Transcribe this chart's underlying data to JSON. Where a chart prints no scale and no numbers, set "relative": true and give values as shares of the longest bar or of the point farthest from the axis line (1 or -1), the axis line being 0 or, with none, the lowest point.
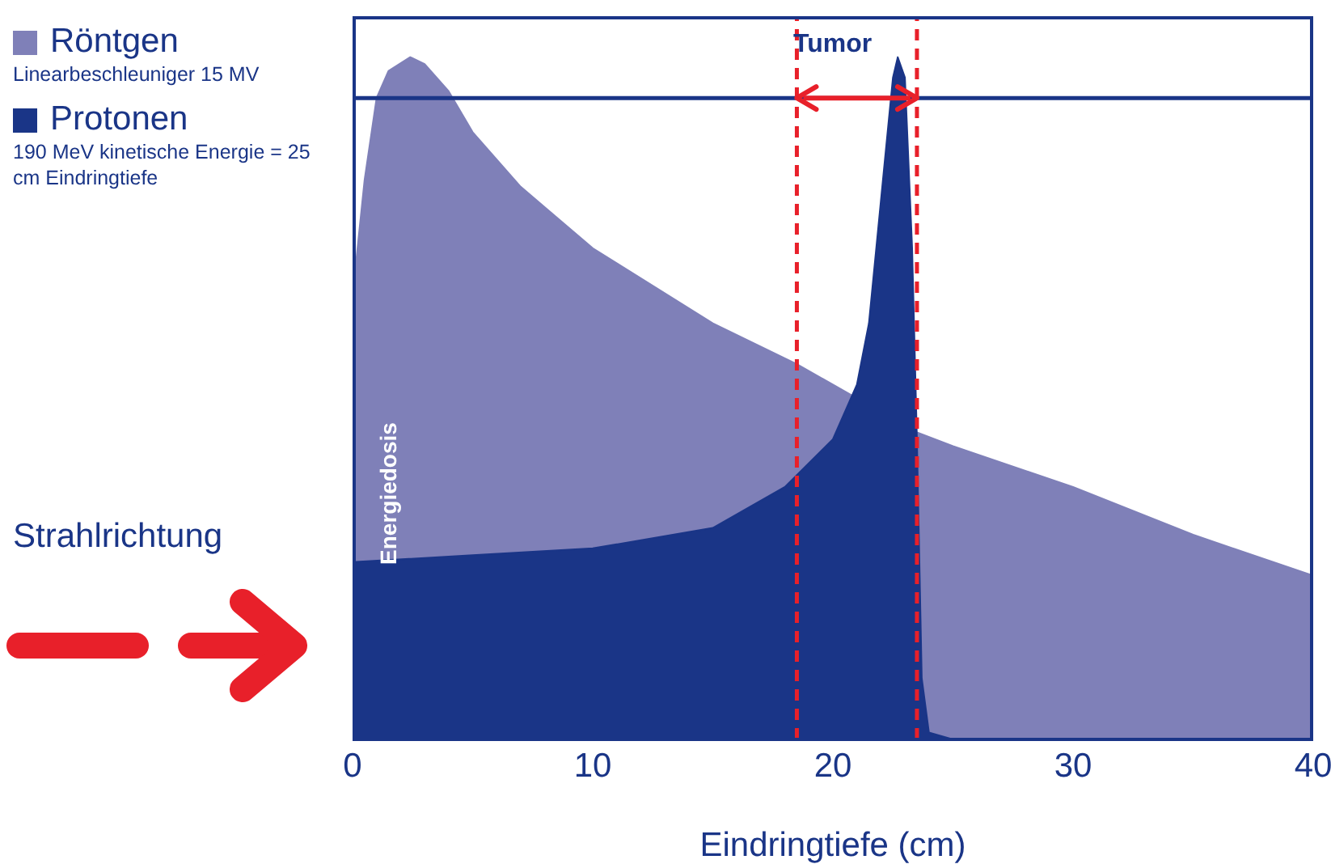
{
  "chart_data": {
    "type": "area",
    "relative": true,
    "xlabel": "Eindringtiefe (cm)",
    "ylabel": "Energiedosis",
    "xlim": [
      0,
      40
    ],
    "xticks": [
      0,
      10,
      20,
      30,
      40
    ],
    "legend": "left",
    "series": [
      {
        "name": "Röntgen",
        "color": "#7f80b8",
        "x": [
          0,
          0.5,
          1,
          1.5,
          2.4,
          3,
          4,
          5,
          7,
          10,
          15,
          18.5,
          20,
          23.5,
          25,
          30,
          35,
          40
        ],
        "values": [
          0.65,
          0.82,
          0.94,
          0.98,
          1.0,
          0.99,
          0.95,
          0.89,
          0.81,
          0.72,
          0.61,
          0.55,
          0.52,
          0.45,
          0.43,
          0.37,
          0.3,
          0.24
        ]
      },
      {
        "name": "Protonen",
        "color": "#1a3587",
        "x": [
          0,
          5,
          10,
          15,
          18,
          20,
          21,
          21.5,
          22,
          22.5,
          22.7,
          23,
          23.3,
          23.5,
          23.7,
          24,
          25
        ],
        "values": [
          0.26,
          0.27,
          0.28,
          0.31,
          0.37,
          0.44,
          0.52,
          0.61,
          0.79,
          0.97,
          1.0,
          0.97,
          0.72,
          0.44,
          0.09,
          0.01,
          0
        ]
      }
    ],
    "ref_lines": [
      {
        "axis": "y",
        "value": 0.94,
        "color": "#1a3587",
        "line_style": "solid"
      },
      {
        "axis": "x",
        "value": 18.5,
        "color": "#e8202a",
        "line_style": "dashed"
      },
      {
        "axis": "x",
        "value": 23.5,
        "color": "#e8202a",
        "line_style": "dashed"
      }
    ],
    "annotations": [
      "Tumor",
      "Linearbeschleuniger 15 MV",
      "190 MeV kinetische Energie = 25 cm Eindringtiefe",
      "Strahlrichtung"
    ]
  }
}
